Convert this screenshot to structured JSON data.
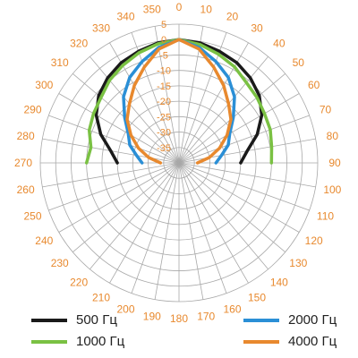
{
  "chart_data": {
    "type": "polar-line",
    "angle_unit": "degrees",
    "angle_labels": [
      "0",
      "10",
      "20",
      "30",
      "40",
      "50",
      "60",
      "70",
      "80",
      "90",
      "100",
      "110",
      "120",
      "130",
      "140",
      "150",
      "160",
      "170",
      "180",
      "190",
      "200",
      "210",
      "220",
      "230",
      "240",
      "250",
      "260",
      "270",
      "280",
      "290",
      "300",
      "310",
      "320",
      "330",
      "340",
      "350"
    ],
    "radial_labels": [
      "5",
      "0",
      "-5",
      "-10",
      "-15",
      "-20",
      "-25",
      "-30",
      "-35"
    ],
    "radial_range": [
      -40,
      5
    ],
    "grid": true,
    "legend_position": "bottom",
    "series": [
      {
        "name": "500 Гц",
        "color": "#1a1a1a",
        "points": [
          {
            "angle": 270,
            "value": -20
          },
          {
            "angle": 280,
            "value": -17.5
          },
          {
            "angle": 290,
            "value": -13
          },
          {
            "angle": 300,
            "value": -9
          },
          {
            "angle": 310,
            "value": -6
          },
          {
            "angle": 320,
            "value": -4
          },
          {
            "angle": 330,
            "value": -2.5
          },
          {
            "angle": 340,
            "value": -1.5
          },
          {
            "angle": 350,
            "value": -0.5
          },
          {
            "angle": 0,
            "value": 0
          },
          {
            "angle": 10,
            "value": -0.5
          },
          {
            "angle": 20,
            "value": -1.5
          },
          {
            "angle": 30,
            "value": -2.5
          },
          {
            "angle": 40,
            "value": -4
          },
          {
            "angle": 50,
            "value": -6
          },
          {
            "angle": 60,
            "value": -9
          },
          {
            "angle": 70,
            "value": -13
          },
          {
            "angle": 80,
            "value": -17.5
          },
          {
            "angle": 90,
            "value": -20
          }
        ]
      },
      {
        "name": "1000 Гц",
        "color": "#7ac143",
        "points": [
          {
            "angle": 270,
            "value": -10
          },
          {
            "angle": 280,
            "value": -11
          },
          {
            "angle": 290,
            "value": -9
          },
          {
            "angle": 300,
            "value": -8
          },
          {
            "angle": 310,
            "value": -7
          },
          {
            "angle": 320,
            "value": -5
          },
          {
            "angle": 330,
            "value": -3.5
          },
          {
            "angle": 340,
            "value": -2
          },
          {
            "angle": 350,
            "value": -0.8
          },
          {
            "angle": 0,
            "value": 0
          },
          {
            "angle": 10,
            "value": -1
          },
          {
            "angle": 20,
            "value": -2.5
          },
          {
            "angle": 30,
            "value": -4
          },
          {
            "angle": 40,
            "value": -6
          },
          {
            "angle": 50,
            "value": -7
          },
          {
            "angle": 60,
            "value": -8
          },
          {
            "angle": 70,
            "value": -8.5
          },
          {
            "angle": 80,
            "value": -9.5
          },
          {
            "angle": 90,
            "value": -10
          }
        ]
      },
      {
        "name": "2000 Гц",
        "color": "#2b8fd6",
        "points": [
          {
            "angle": 270,
            "value": -28
          },
          {
            "angle": 280,
            "value": -26
          },
          {
            "angle": 290,
            "value": -23
          },
          {
            "angle": 300,
            "value": -21
          },
          {
            "angle": 310,
            "value": -17
          },
          {
            "angle": 320,
            "value": -12
          },
          {
            "angle": 330,
            "value": -8
          },
          {
            "angle": 340,
            "value": -5
          },
          {
            "angle": 350,
            "value": -2
          },
          {
            "angle": 0,
            "value": 0
          },
          {
            "angle": 10,
            "value": -2
          },
          {
            "angle": 20,
            "value": -5
          },
          {
            "angle": 30,
            "value": -8
          },
          {
            "angle": 40,
            "value": -12
          },
          {
            "angle": 50,
            "value": -17
          },
          {
            "angle": 60,
            "value": -21
          },
          {
            "angle": 70,
            "value": -23
          },
          {
            "angle": 80,
            "value": -26
          },
          {
            "angle": 90,
            "value": -28
          }
        ]
      },
      {
        "name": "4000 Гц",
        "color": "#e8892e",
        "points": [
          {
            "angle": 270,
            "value": -34
          },
          {
            "angle": 280,
            "value": -30
          },
          {
            "angle": 290,
            "value": -26
          },
          {
            "angle": 300,
            "value": -22
          },
          {
            "angle": 310,
            "value": -18
          },
          {
            "angle": 320,
            "value": -15
          },
          {
            "angle": 330,
            "value": -11
          },
          {
            "angle": 340,
            "value": -7
          },
          {
            "angle": 350,
            "value": -2.5
          },
          {
            "angle": 0,
            "value": 0
          },
          {
            "angle": 10,
            "value": -2.5
          },
          {
            "angle": 20,
            "value": -7
          },
          {
            "angle": 30,
            "value": -11
          },
          {
            "angle": 40,
            "value": -15
          },
          {
            "angle": 50,
            "value": -18
          },
          {
            "angle": 60,
            "value": -22
          },
          {
            "angle": 70,
            "value": -26
          },
          {
            "angle": 80,
            "value": -30
          },
          {
            "angle": 90,
            "value": -34
          }
        ]
      }
    ]
  },
  "style": {
    "angle_label_color": "#e8892e",
    "radial_label_color": "#e8892e",
    "grid_color": "#a8a8a8",
    "legend_text_color": "#222222"
  }
}
